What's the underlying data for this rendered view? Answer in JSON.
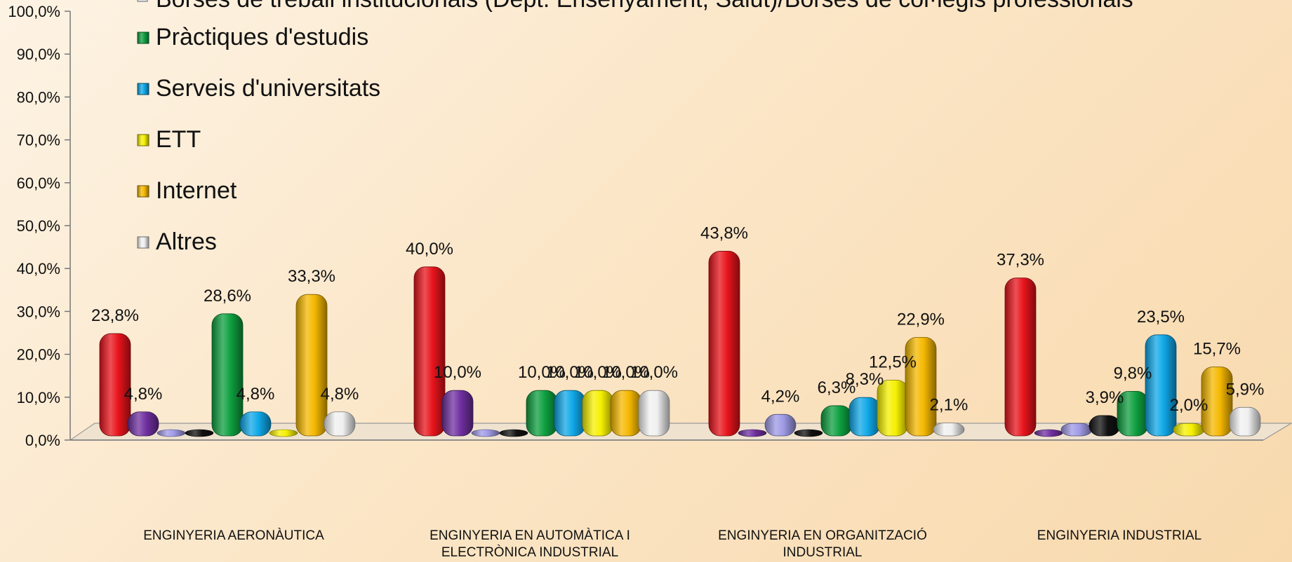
{
  "chart_data": {
    "type": "bar",
    "ylim": [
      0,
      100
    ],
    "yticks": [
      "0,0%",
      "10,0%",
      "20,0%",
      "30,0%",
      "40,0%",
      "50,0%",
      "60,0%",
      "70,0%",
      "80,0%",
      "90,0%",
      "100,0%"
    ],
    "legend_placement": "top-left (inside plot)",
    "categories": [
      [
        "ENGINYERIA AERONÀUTICA"
      ],
      [
        "ENGINYERIA EN AUTOMÀTICA I",
        "ELECTRÒNICA INDUSTRIAL"
      ],
      [
        "ENGINYERIA EN ORGANITZACIÓ",
        "INDUSTRIAL"
      ],
      [
        "ENGINYERIA INDUSTRIAL"
      ]
    ],
    "series": [
      {
        "color": "#e8141c",
        "values": [
          23.8,
          40.0,
          43.8,
          37.3
        ],
        "labels": [
          "23,8%",
          "40,0%",
          "43,8%",
          "37,3%"
        ]
      },
      {
        "color": "#7030a0",
        "values": [
          4.8,
          10.0,
          0,
          0
        ],
        "labels": [
          "4,8%",
          "10,0%",
          "",
          ""
        ]
      },
      {
        "color": "#9f9ae6",
        "values": [
          0,
          0,
          4.2,
          2.0
        ],
        "labels": [
          "",
          "",
          "4,2%",
          ""
        ]
      },
      {
        "color": "#111111",
        "values": [
          0,
          0,
          0,
          3.9
        ],
        "labels": [
          "",
          "",
          "",
          "3,9%"
        ]
      },
      {
        "name": "Pràctiques d'estudis",
        "color": "#0fa040",
        "values": [
          28.6,
          10.0,
          6.3,
          9.8
        ],
        "labels": [
          "28,6%",
          "10,0%",
          "6,3%",
          "9,8%"
        ]
      },
      {
        "name": "Serveis d'universitats",
        "color": "#10a8e8",
        "values": [
          4.8,
          10.0,
          8.3,
          23.5
        ],
        "labels": [
          "4,8%",
          "10,0%",
          "8,3%",
          "23,5%"
        ]
      },
      {
        "name": "ETT",
        "color": "#f6f000",
        "values": [
          0,
          10.0,
          12.5,
          2.0
        ],
        "labels": [
          "",
          "10,0%",
          "12,5%",
          "2,0%"
        ]
      },
      {
        "name": "Internet",
        "color": "#f5b800",
        "values": [
          33.3,
          10.0,
          22.9,
          15.7
        ],
        "labels": [
          "33,3%",
          "10,0%",
          "22,9%",
          "15,7%"
        ]
      },
      {
        "name": "Altres",
        "color": "#f0f0f0",
        "values": [
          4.8,
          10.0,
          2.1,
          5.9
        ],
        "labels": [
          "4,8%",
          "10,0%",
          "2,1%",
          "5,9%"
        ]
      }
    ],
    "legend_partial_text": "Borses de treball institucionals (Dept. Ensenyament, Salut)/Borses de col·legis professionals"
  }
}
